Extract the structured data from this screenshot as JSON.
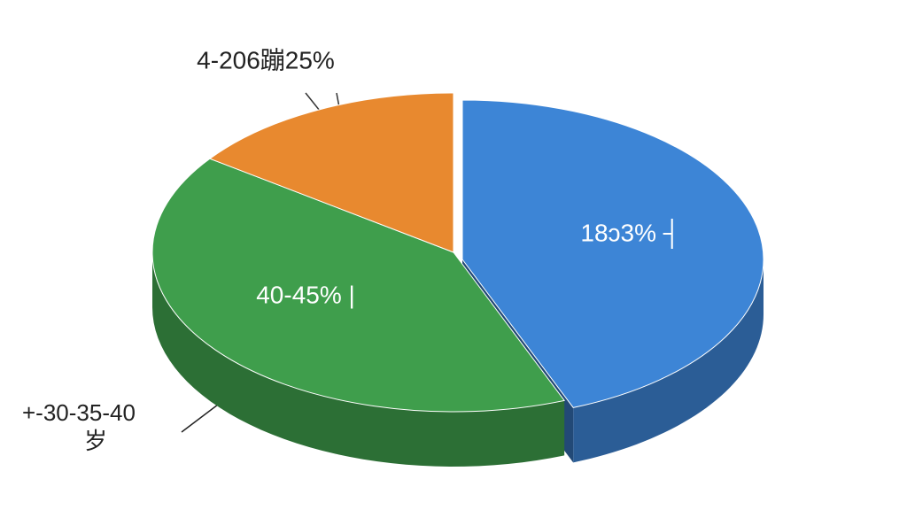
{
  "chart_data": {
    "type": "pie",
    "categories": [
      "18ɔ3% ┤",
      "40-45% |",
      "4-206蹦25%"
    ],
    "values": [
      44,
      41,
      15
    ],
    "colors": [
      "#3d85d6",
      "#3f9e4c",
      "#e8892f"
    ],
    "annotation": [
      "+-30-35-40",
      "岁"
    ]
  }
}
